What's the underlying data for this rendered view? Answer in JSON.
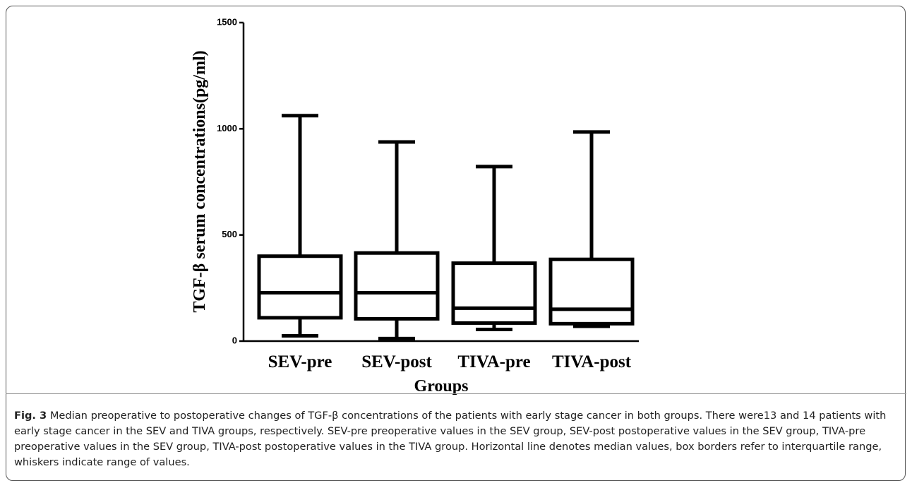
{
  "chart_data": {
    "type": "box",
    "y_label": "TGF-β serum concentrations(pg/ml)",
    "x_label": "Groups",
    "categories": [
      "SEV-pre",
      "SEV-post",
      "TIVA-pre",
      "TIVA-post"
    ],
    "boxes": [
      {
        "min": 25,
        "q1": 110,
        "median": 228,
        "q3": 400,
        "max": 1062
      },
      {
        "min": 12,
        "q1": 105,
        "median": 228,
        "q3": 415,
        "max": 938
      },
      {
        "min": 55,
        "q1": 85,
        "median": 155,
        "q3": 367,
        "max": 822
      },
      {
        "min": 70,
        "q1": 82,
        "median": 150,
        "q3": 385,
        "max": 985
      }
    ],
    "color": "#000000",
    "ylim": [
      0,
      1500
    ],
    "yticks": [
      0,
      500,
      1000,
      1500
    ]
  },
  "caption": {
    "label": "Fig. 3",
    "text": "Median preoperative to postoperative changes of TGF-β concentrations of the patients with early stage cancer in both groups. There were13 and 14 patients with early stage cancer in the SEV and TIVA groups, respectively. SEV-pre preoperative values in the SEV group, SEV-post postoperative values in the SEV group, TIVA-pre preoperative values in the SEV group, TIVA-post postoperative values in the TIVA group. Horizontal line denotes median values, box borders refer to interquartile range, whiskers indicate range of values."
  }
}
